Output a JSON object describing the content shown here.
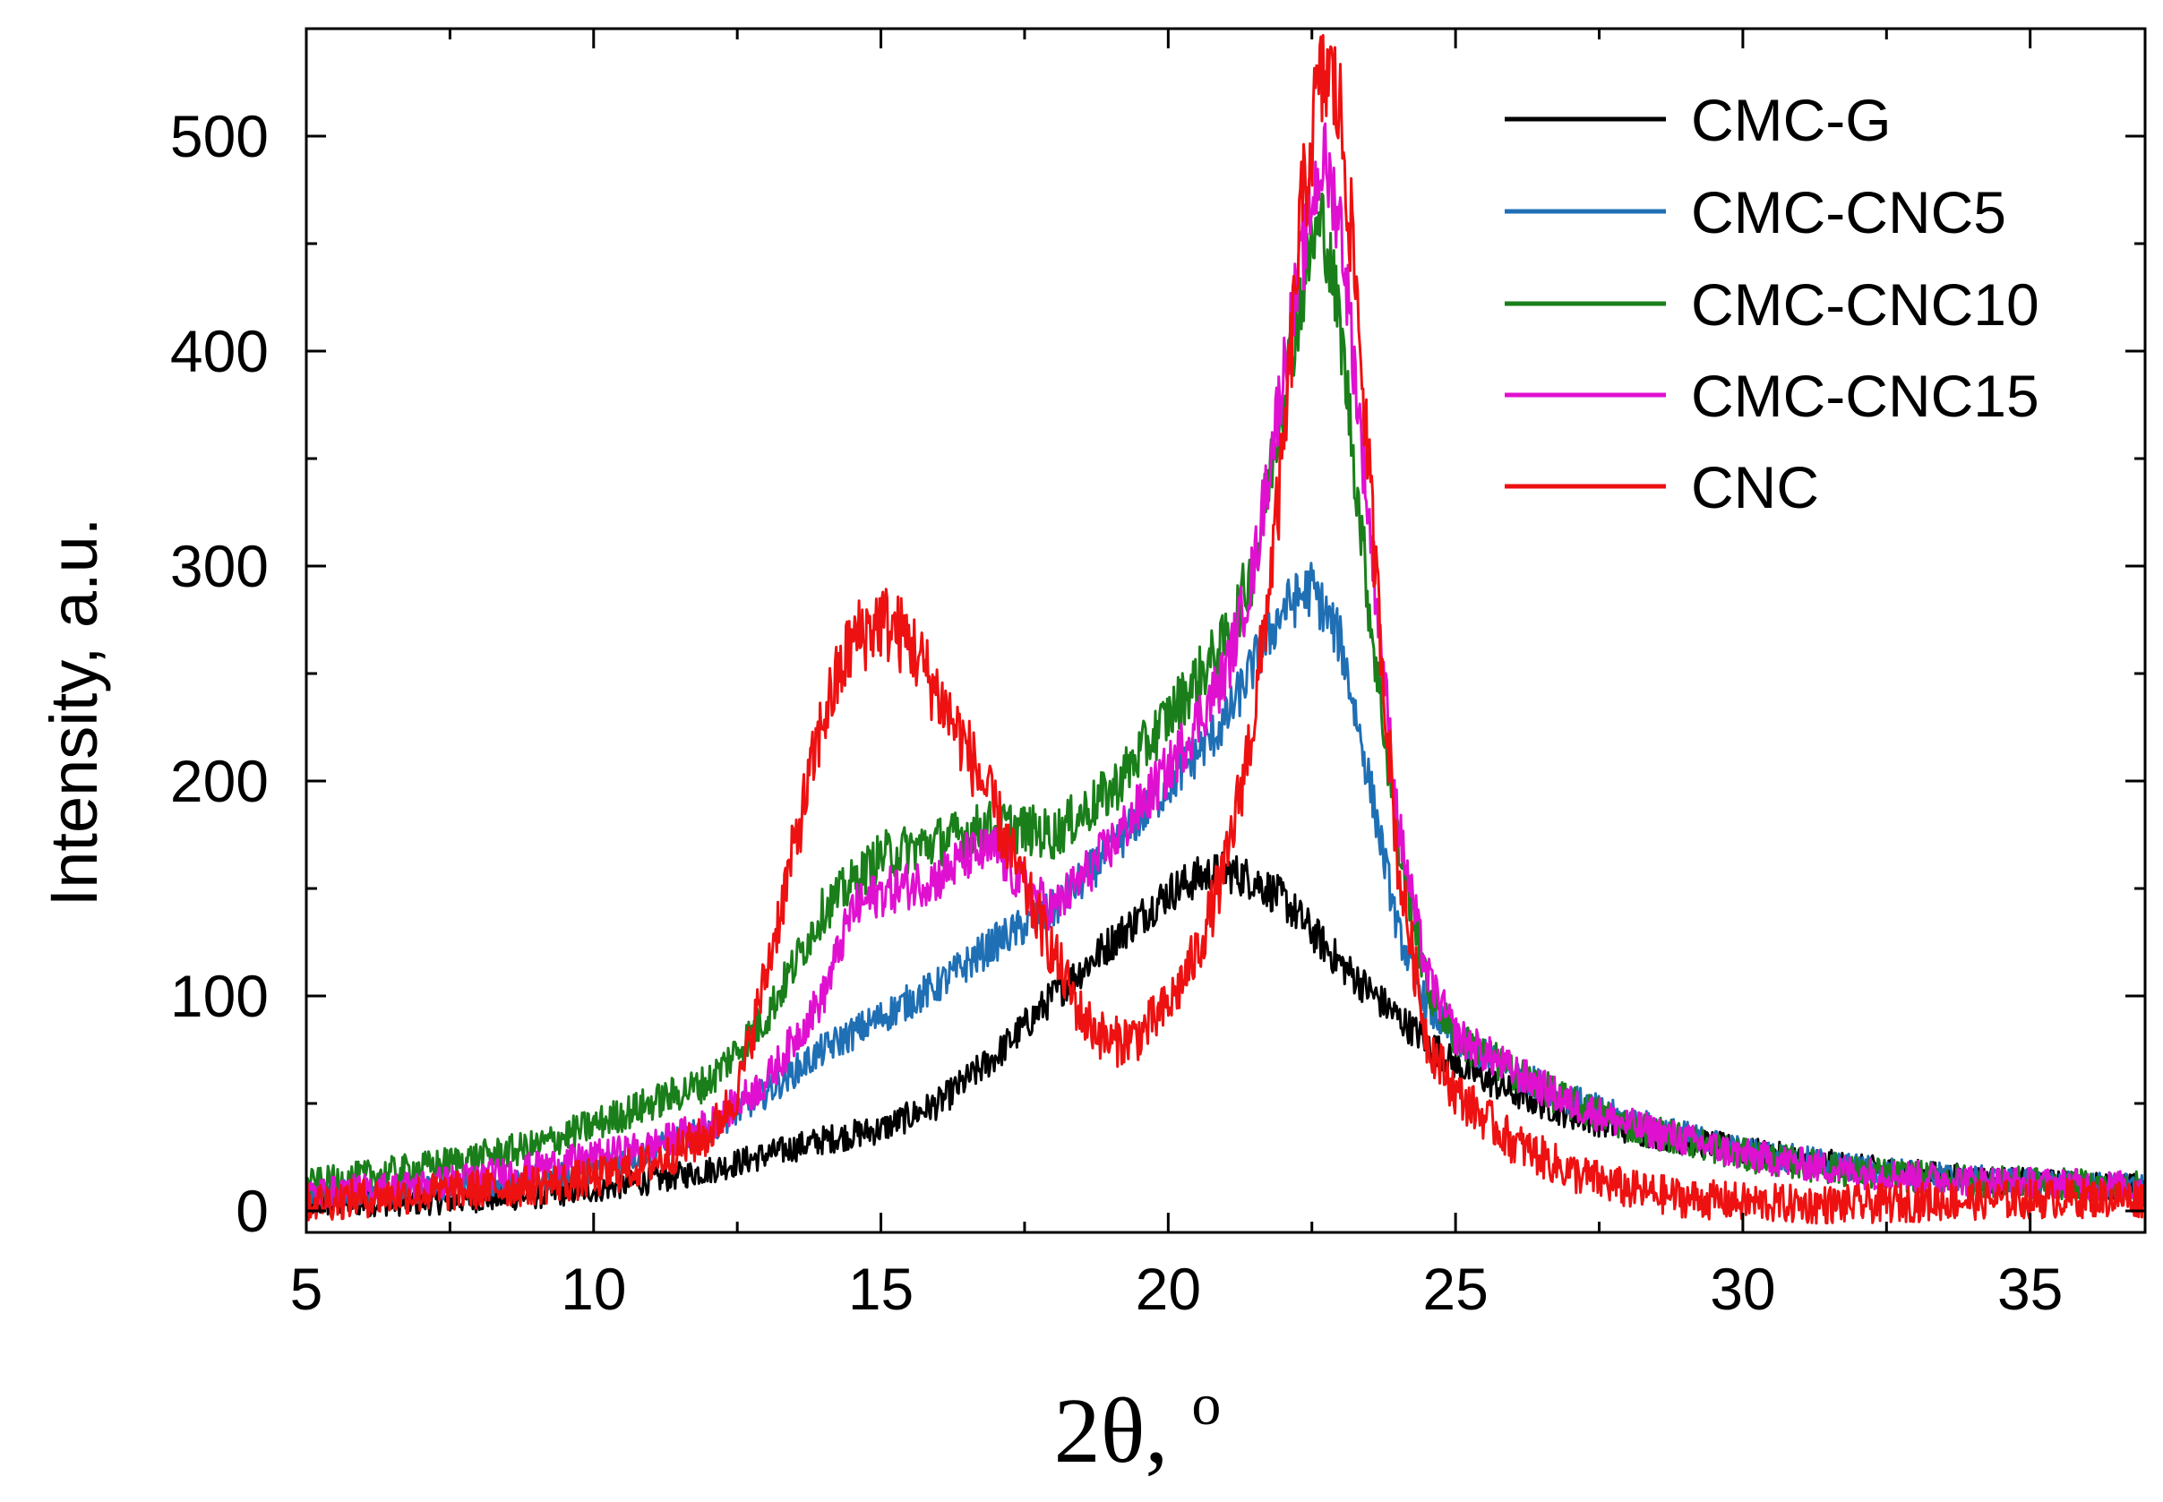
{
  "chart_data": {
    "type": "line",
    "title": "",
    "xlabel": "2θ, ",
    "xlabel_sup": "o",
    "ylabel": "Intensity, a.u.",
    "xlim": [
      5,
      37
    ],
    "ylim": [
      -10,
      550
    ],
    "xticks": [
      5,
      10,
      15,
      20,
      25,
      30,
      35
    ],
    "yticks": [
      0,
      100,
      200,
      300,
      400,
      500
    ],
    "grid": false,
    "legend_position": "top-right",
    "series": [
      {
        "name": "CMC-G",
        "color": "#000000",
        "noise": 6,
        "x": [
          5,
          7,
          9,
          10,
          11,
          12,
          13,
          14,
          15,
          16,
          17,
          18,
          19,
          20,
          20.5,
          21,
          21.5,
          22,
          22.5,
          23,
          24,
          25,
          26,
          27,
          28,
          29,
          30,
          32,
          34,
          36,
          37
        ],
        "y": [
          3,
          4,
          7,
          10,
          14,
          19,
          26,
          33,
          38,
          50,
          72,
          100,
          125,
          148,
          155,
          158,
          154,
          145,
          130,
          115,
          90,
          68,
          55,
          45,
          38,
          33,
          28,
          20,
          15,
          12,
          11
        ]
      },
      {
        "name": "CMC-CNC5",
        "color": "#1f6fb5",
        "noise": 6,
        "x": [
          5,
          7,
          9,
          10,
          11,
          12,
          13,
          14,
          15,
          16,
          17,
          18,
          19,
          20,
          21,
          21.5,
          22,
          22.5,
          23,
          23.5,
          24,
          24.5,
          25,
          26,
          27,
          28,
          29,
          30,
          32,
          34,
          36,
          37
        ],
        "y": [
          8,
          10,
          15,
          20,
          28,
          38,
          55,
          75,
          90,
          105,
          125,
          140,
          168,
          198,
          228,
          255,
          280,
          290,
          265,
          200,
          130,
          95,
          80,
          65,
          52,
          42,
          35,
          28,
          20,
          15,
          12,
          11
        ]
      },
      {
        "name": "CMC-CNC10",
        "color": "#1a7f1a",
        "noise": 7,
        "x": [
          5,
          7,
          9,
          10,
          11,
          12,
          13,
          14,
          15,
          16,
          17,
          18,
          19,
          20,
          21,
          21.5,
          22,
          22.5,
          22.7,
          23,
          23.5,
          24,
          24.5,
          25,
          26,
          27,
          28,
          29,
          30,
          32,
          34,
          36,
          37
        ],
        "y": [
          12,
          20,
          30,
          40,
          50,
          60,
          90,
          140,
          165,
          172,
          180,
          175,
          195,
          230,
          265,
          300,
          380,
          450,
          460,
          410,
          280,
          170,
          105,
          80,
          65,
          50,
          40,
          33,
          26,
          18,
          14,
          12,
          11
        ]
      },
      {
        "name": "CMC-CNC15",
        "color": "#e010d0",
        "noise": 7,
        "x": [
          5,
          7,
          9,
          10,
          11,
          12,
          13,
          14,
          14.5,
          15,
          16,
          16.5,
          17,
          17.5,
          18,
          19,
          20,
          21,
          21.5,
          22,
          22.5,
          22.7,
          23,
          23.5,
          24,
          24.5,
          25,
          26,
          27,
          28,
          29,
          30,
          32,
          34,
          36,
          37
        ],
        "y": [
          8,
          12,
          20,
          25,
          30,
          40,
          60,
          100,
          140,
          148,
          155,
          165,
          168,
          150,
          140,
          170,
          205,
          250,
          300,
          390,
          470,
          490,
          460,
          320,
          180,
          110,
          82,
          65,
          50,
          40,
          33,
          26,
          18,
          14,
          12,
          11
        ]
      },
      {
        "name": "CNC",
        "color": "#ee1111",
        "noise": 9,
        "x": [
          5,
          7,
          9,
          10,
          11,
          12,
          12.5,
          13,
          13.5,
          14,
          14.5,
          15,
          15.5,
          16,
          16.5,
          17,
          17.5,
          18,
          18.5,
          19,
          19.5,
          20,
          20.5,
          21,
          21.5,
          22,
          22.3,
          22.6,
          22.8,
          23,
          23.3,
          23.6,
          24,
          24.5,
          25,
          26,
          27,
          28,
          29,
          30,
          31,
          32,
          34,
          36,
          37
        ],
        "y": [
          4,
          8,
          12,
          15,
          22,
          35,
          55,
          110,
          170,
          230,
          265,
          275,
          265,
          240,
          215,
          185,
          150,
          120,
          90,
          78,
          82,
          95,
          120,
          160,
          230,
          350,
          460,
          520,
          530,
          510,
          420,
          300,
          160,
          80,
          55,
          32,
          18,
          10,
          6,
          4,
          3,
          3,
          5,
          6,
          6
        ]
      }
    ]
  }
}
